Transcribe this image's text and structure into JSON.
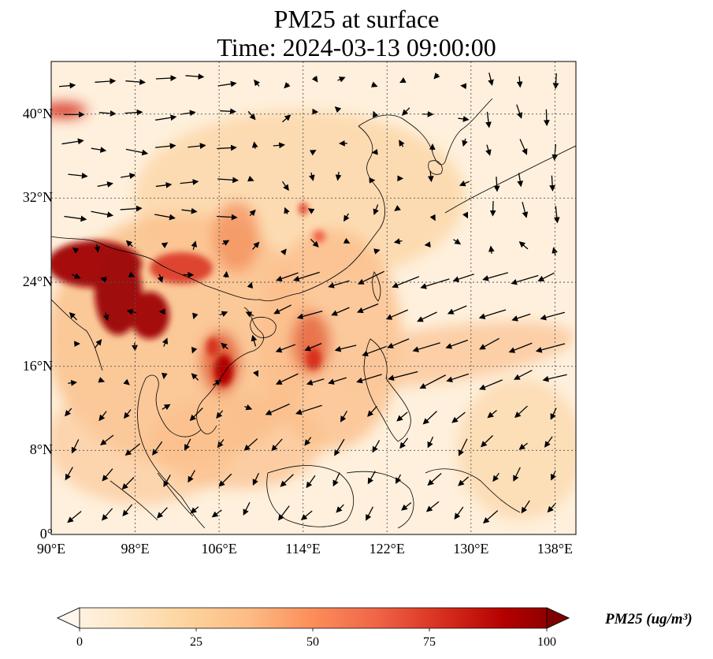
{
  "title": {
    "line1": "PM25 at surface",
    "line2": "Time: 2024-03-13 09:00:00"
  },
  "map": {
    "extent": {
      "lon_min": 90,
      "lon_max": 140,
      "lat_min": 0,
      "lat_max": 45
    },
    "lon_ticks": [
      90,
      98,
      106,
      114,
      122,
      130,
      138
    ],
    "lat_ticks": [
      0,
      8,
      16,
      24,
      32,
      40
    ],
    "lon_tick_labels": [
      "90°E",
      "98°E",
      "106°E",
      "114°E",
      "122°E",
      "130°E",
      "138°E"
    ],
    "lat_tick_labels": [
      "0°",
      "8°N",
      "16°N",
      "24°N",
      "32°N",
      "40°N"
    ],
    "gridlines": "dotted",
    "coastlines": true,
    "variable": "PM25",
    "wind_vectors": true
  },
  "colorbar": {
    "colormap": "OrRd",
    "vmin": 0,
    "vmax": 100,
    "ticks": [
      "0",
      "25",
      "50",
      "75",
      "100"
    ],
    "extend": "both",
    "label": "PM25 (ug/m³)",
    "colors": [
      "#fff7ec",
      "#fee8c8",
      "#fdd49e",
      "#fdbb84",
      "#fc8d59",
      "#ef6548",
      "#d7301f",
      "#b30000",
      "#7f0000"
    ]
  }
}
